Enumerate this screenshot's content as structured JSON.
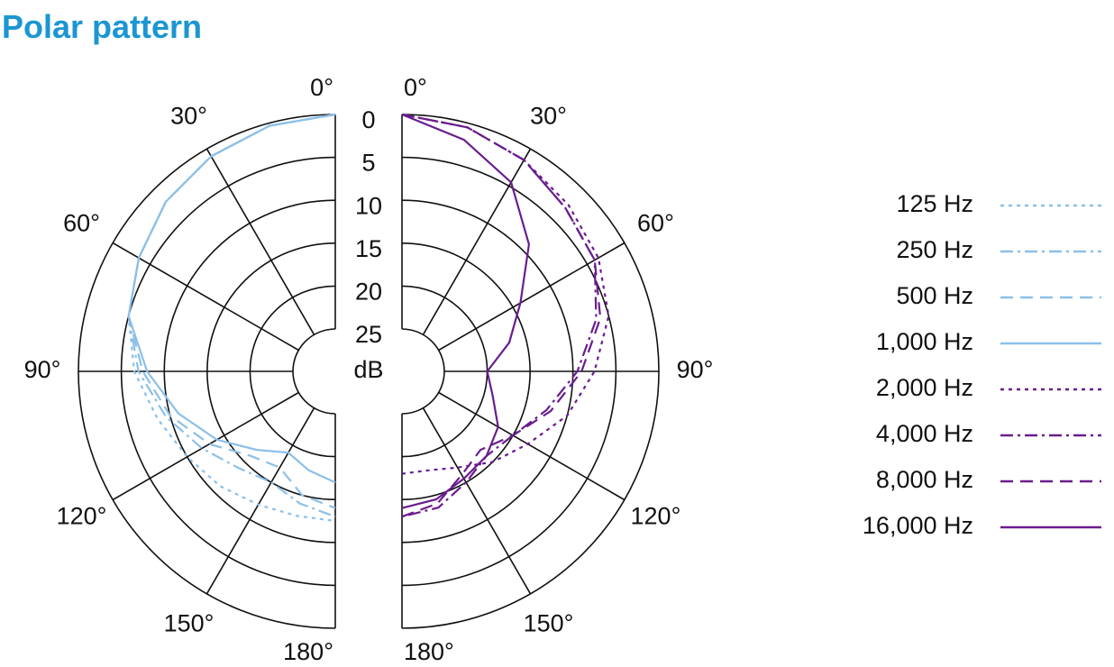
{
  "title": "Polar pattern",
  "chart_data": [
    {
      "type": "polar",
      "side": "left",
      "angles": [
        0,
        15,
        30,
        45,
        60,
        75,
        90,
        105,
        120,
        135,
        150,
        165,
        180
      ],
      "angle_ticks": [
        {
          "value": 0,
          "label": "0°"
        },
        {
          "value": 30,
          "label": "30°"
        },
        {
          "value": 60,
          "label": "60°"
        },
        {
          "value": 90,
          "label": "90°"
        },
        {
          "value": 120,
          "label": "120°"
        },
        {
          "value": 150,
          "label": "150°"
        },
        {
          "value": 180,
          "label": "180°"
        }
      ],
      "rlim": [
        25,
        0
      ],
      "rticks": [
        0,
        5,
        10,
        15,
        20,
        25
      ],
      "rlabel": "dB",
      "series": [
        {
          "name": "125 Hz",
          "color": "#8cc0e8",
          "dash": "dotted",
          "values": [
            0,
            0.3,
            1,
            2,
            3.5,
            5,
            6.5,
            8.5,
            10,
            11,
            12,
            12.5,
            12.5
          ]
        },
        {
          "name": "250 Hz",
          "color": "#8cc0e8",
          "dash": "dashdot",
          "values": [
            0,
            0.3,
            1,
            2,
            3.5,
            5,
            7,
            9.5,
            12,
            14,
            15,
            14,
            13
          ]
        },
        {
          "name": "500 Hz",
          "color": "#8cc0e8",
          "dash": "dashed",
          "values": [
            0,
            0.3,
            1,
            2,
            3.5,
            5,
            7.5,
            10,
            13,
            16,
            17,
            15,
            14
          ]
        },
        {
          "name": "1,000 Hz",
          "color": "#8cc0e8",
          "dash": "solid",
          "values": [
            0,
            0.3,
            1,
            2,
            3.5,
            5,
            8,
            11,
            14,
            17,
            19,
            18,
            17
          ]
        }
      ]
    },
    {
      "type": "polar",
      "side": "right",
      "angles": [
        0,
        15,
        30,
        45,
        60,
        75,
        90,
        105,
        120,
        135,
        150,
        165,
        180
      ],
      "angle_ticks": [
        {
          "value": 0,
          "label": "0°"
        },
        {
          "value": 30,
          "label": "30°"
        },
        {
          "value": 60,
          "label": "60°"
        },
        {
          "value": 90,
          "label": "90°"
        },
        {
          "value": 120,
          "label": "120°"
        },
        {
          "value": 150,
          "label": "150°"
        },
        {
          "value": 180,
          "label": "180°"
        }
      ],
      "rlim": [
        25,
        0
      ],
      "rticks": [
        0,
        5,
        10,
        15,
        20,
        25
      ],
      "series": [
        {
          "name": "2,000 Hz",
          "color": "#6a1d8e",
          "dash": "dotted",
          "values": [
            0,
            0.5,
            1.5,
            2.5,
            3.5,
            5,
            7.5,
            10,
            13,
            15,
            17,
            18,
            18
          ]
        },
        {
          "name": "4,000 Hz",
          "color": "#6a1d8e",
          "dash": "dashdot",
          "values": [
            0,
            0.5,
            1.5,
            3,
            4,
            6.5,
            9.5,
            12.5,
            15,
            16,
            15,
            13.5,
            13
          ]
        },
        {
          "name": "8,000 Hz",
          "color": "#6a1d8e",
          "dash": "dashed",
          "values": [
            0,
            0.5,
            1.5,
            3,
            4,
            6,
            9,
            12,
            15,
            17,
            16,
            14,
            13
          ]
        },
        {
          "name": "16,000 Hz",
          "color": "#6a1d8e",
          "dash": "solid",
          "values": [
            0,
            2,
            4.5,
            9,
            14,
            17,
            20,
            19,
            17,
            16,
            15.5,
            14.5,
            14
          ]
        }
      ]
    }
  ]
}
